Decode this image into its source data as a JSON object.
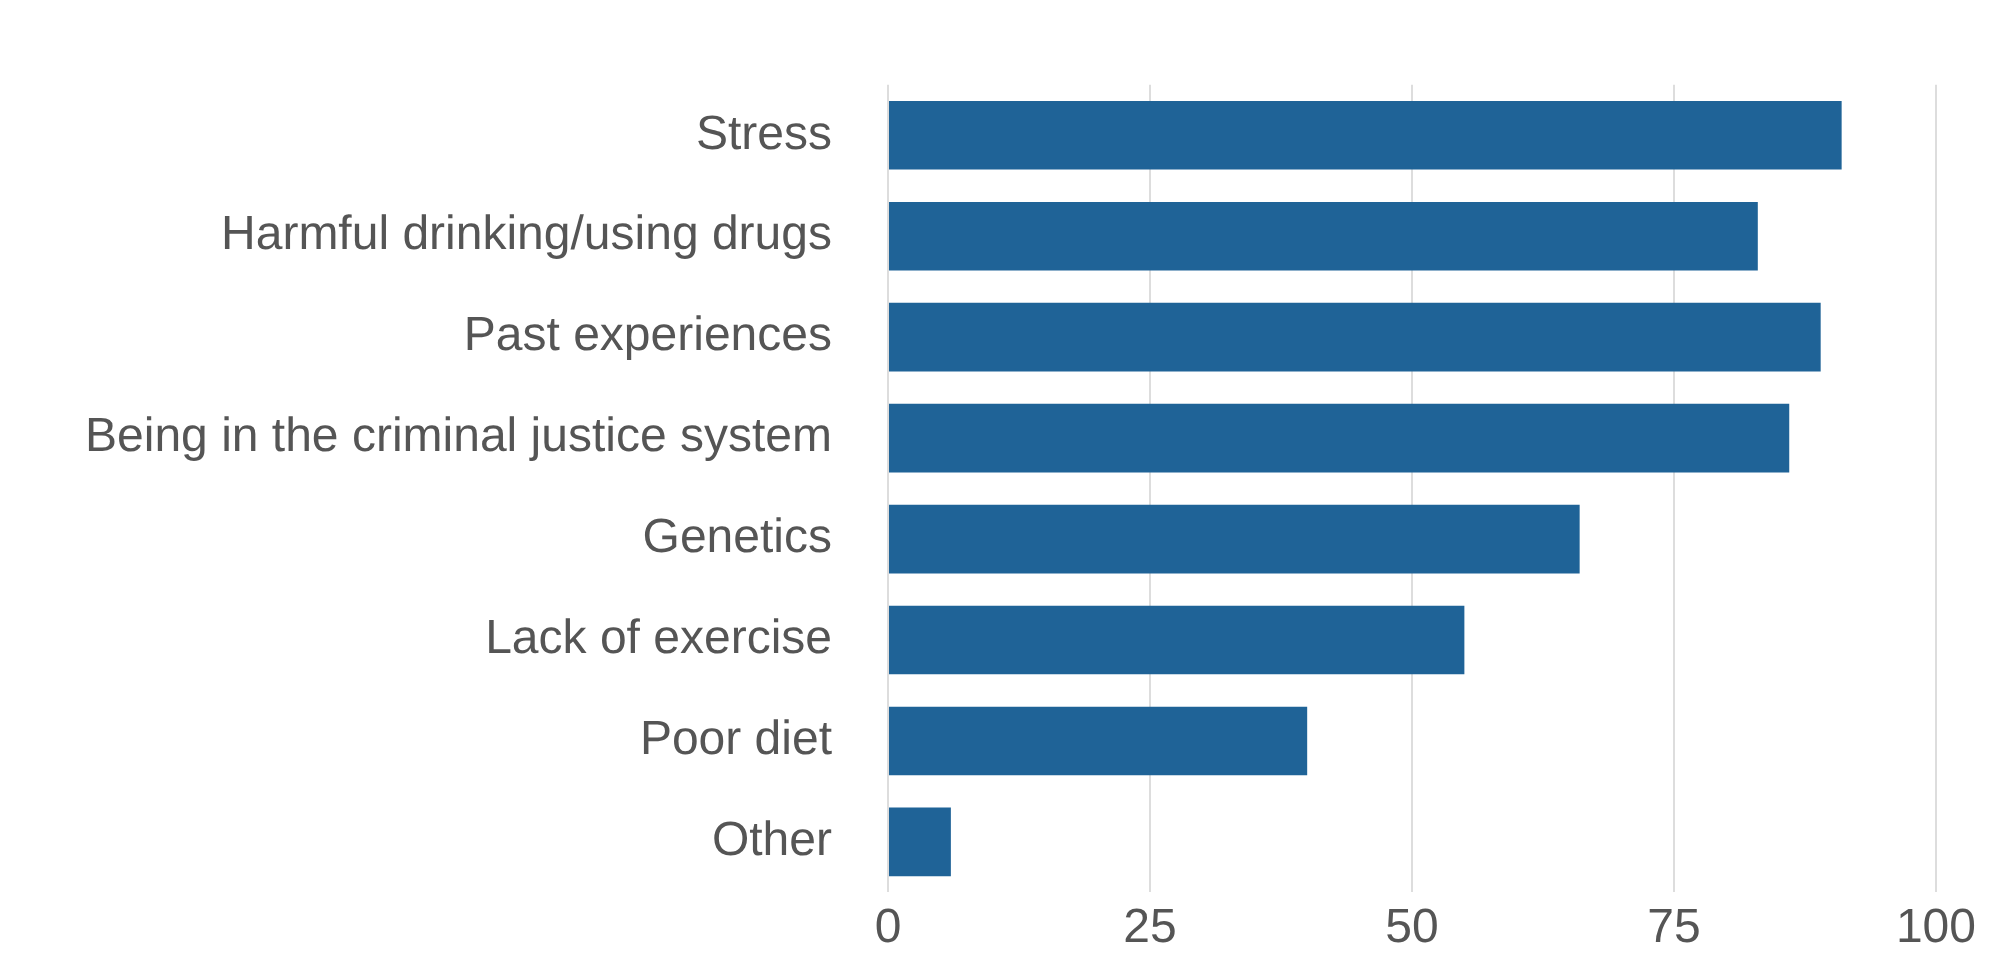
{
  "chart_data": {
    "type": "bar",
    "orientation": "horizontal",
    "categories": [
      "Stress",
      "Harmful drinking/using drugs",
      "Past experiences",
      "Being in the criminal justice system",
      "Genetics",
      "Lack of exercise",
      "Poor diet",
      "Other"
    ],
    "values": [
      91,
      83,
      89,
      86,
      66,
      55,
      40,
      6
    ],
    "color": "#1f6397",
    "xlim": [
      0,
      100
    ],
    "xticks": [
      0,
      25,
      50,
      75,
      100
    ],
    "grid": "x",
    "legend": false
  }
}
